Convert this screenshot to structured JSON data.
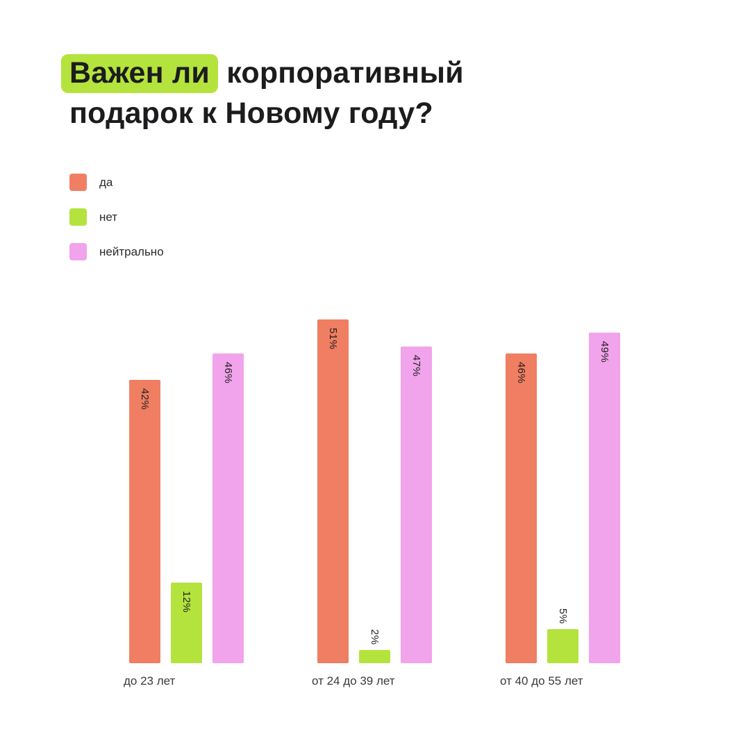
{
  "title": {
    "highlight_text": "Важен ли",
    "line1_rest": " корпоративный",
    "line2": "подарок к Новому году?"
  },
  "colors": {
    "background": "#ffffff",
    "title_text": "#1c1c1e",
    "highlight": "#b4e33d",
    "bar_label_text": "#1f1f1f",
    "category_label_text": "#3a3a3a"
  },
  "chart_data": {
    "type": "bar",
    "title": "Важен ли корпоративный подарок к Новому году?",
    "categories": [
      "до 23 лет",
      "от 24 до 39 лет",
      "от 40 до 55 лет"
    ],
    "series": [
      {
        "name": "да",
        "color": "#f07e62",
        "values": [
          42,
          51,
          46
        ]
      },
      {
        "name": "нет",
        "color": "#b4e33d",
        "values": [
          12,
          2,
          5
        ]
      },
      {
        "name": "нейтрально",
        "color": "#f1a3ec",
        "values": [
          46,
          47,
          49
        ]
      }
    ],
    "value_suffix": "%",
    "ylim": [
      0,
      51
    ],
    "grid": false,
    "legend_position": "upper-left",
    "bar_value_labels_rotation": "vertical"
  }
}
